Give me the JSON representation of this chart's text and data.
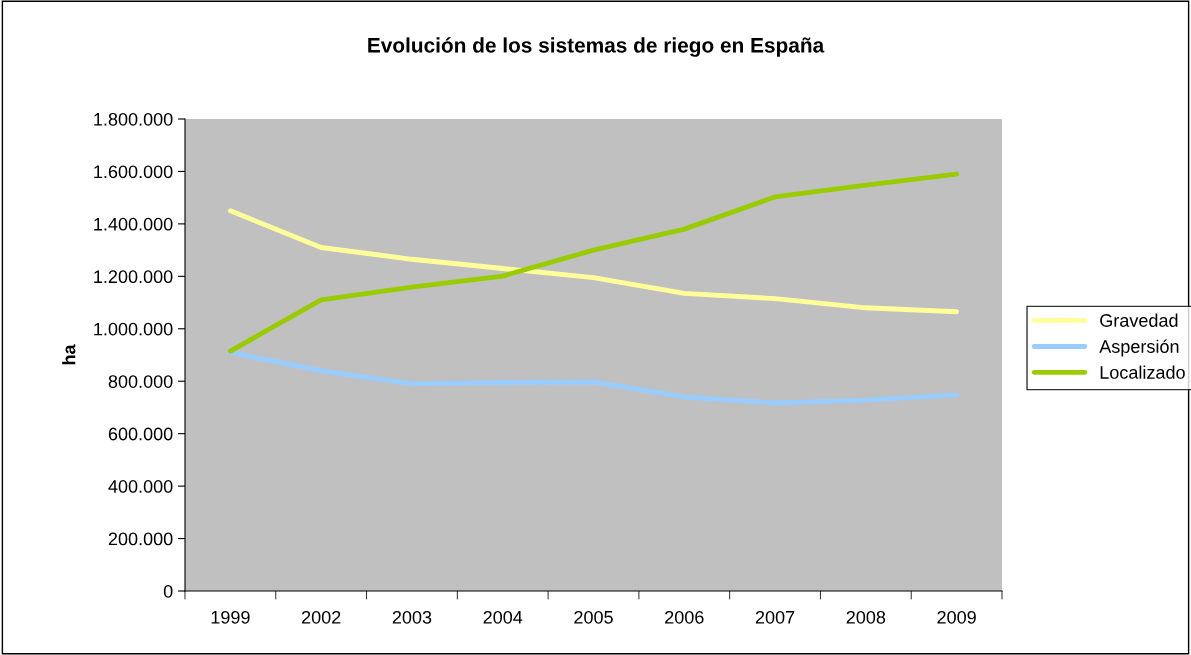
{
  "chart_data": {
    "type": "line",
    "title": "Evolución de los sistemas de riego en España",
    "ylabel": "ha",
    "categories": [
      "1999",
      "2002",
      "2003",
      "2004",
      "2005",
      "2006",
      "2007",
      "2008",
      "2009"
    ],
    "series": [
      {
        "name": "Gravedad",
        "color": "#ffff99",
        "values": [
          1450000,
          1310000,
          1265000,
          1230000,
          1195000,
          1135000,
          1115000,
          1080000,
          1065000
        ]
      },
      {
        "name": "Aspersión",
        "color": "#99ccff",
        "values": [
          910000,
          840000,
          790000,
          795000,
          797000,
          740000,
          717000,
          728000,
          748000
        ]
      },
      {
        "name": "Localizado",
        "color": "#99cc00",
        "values": [
          915000,
          1110000,
          1159000,
          1201000,
          1300000,
          1380000,
          1503000,
          1548000,
          1590000
        ]
      }
    ],
    "ylim": [
      0,
      1800000
    ],
    "yticks": [
      0,
      {
        "value": 200000,
        "label": "200.000"
      },
      {
        "value": 400000,
        "label": "400.000"
      },
      {
        "value": 600000,
        "label": "600.000"
      },
      {
        "value": 800000,
        "label": "800.000"
      },
      {
        "value": 1000000,
        "label": "1.000.000"
      },
      {
        "value": 1200000,
        "label": "1.200.000"
      },
      {
        "value": 1400000,
        "label": "1.400.000"
      },
      {
        "value": 1600000,
        "label": "1.600.000"
      },
      {
        "value": 1800000,
        "label": "1.800.000"
      }
    ],
    "grid": false,
    "legend": "right",
    "marker": "none",
    "line_style": "solid"
  }
}
